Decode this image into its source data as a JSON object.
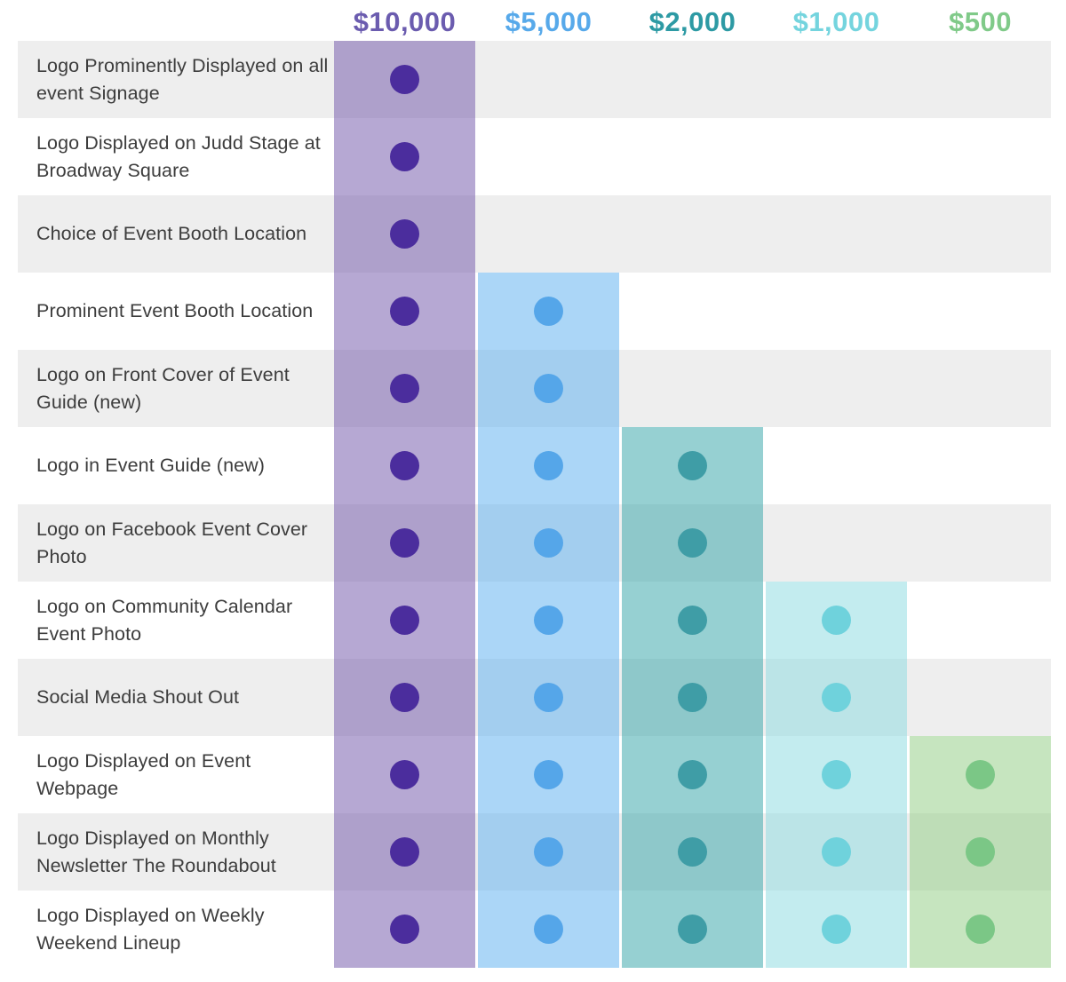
{
  "title": "Sponsorship benefits comparison matrix",
  "colors": {
    "page_bg": "#ffffff",
    "row_bg": "#ffffff",
    "row_alt_bg": "#eeeeee",
    "label_text": "#3d3d3d"
  },
  "tiers": [
    {
      "label": "$10,000",
      "header_color": "#6b5caf",
      "dot_color": "#4b2d9d",
      "band_color": "rgba(109,81,168,0.5)"
    },
    {
      "label": "$5,000",
      "header_color": "#57a9ea",
      "dot_color": "#55a6e9",
      "band_color": "rgba(87,173,239,0.5)"
    },
    {
      "label": "$2,000",
      "header_color": "#2d9aa4",
      "dot_color": "#3f9da6",
      "band_color": "rgba(45,161,165,0.5)"
    },
    {
      "label": "$1,000",
      "header_color": "#74d4de",
      "dot_color": "#6fd2dc",
      "band_color": "rgba(135,217,223,0.5)"
    },
    {
      "label": "$500",
      "header_color": "#80ca89",
      "dot_color": "#7bc786",
      "band_color": "rgba(141,203,127,0.5)"
    }
  ],
  "chart_data": {
    "type": "table",
    "columns": [
      "$10,000",
      "$5,000",
      "$2,000",
      "$1,000",
      "$500"
    ],
    "rows": [
      {
        "label": "Logo Prominently Displayed on all event Signage",
        "included": [
          true,
          false,
          false,
          false,
          false
        ]
      },
      {
        "label": "Logo Displayed on Judd Stage at Broadway Square",
        "included": [
          true,
          false,
          false,
          false,
          false
        ]
      },
      {
        "label": "Choice of Event Booth Location",
        "included": [
          true,
          false,
          false,
          false,
          false
        ]
      },
      {
        "label": "Prominent Event Booth Location",
        "included": [
          true,
          true,
          false,
          false,
          false
        ]
      },
      {
        "label": "Logo on Front Cover of Event Guide (new)",
        "included": [
          true,
          true,
          false,
          false,
          false
        ]
      },
      {
        "label": "Logo in Event Guide (new)",
        "included": [
          true,
          true,
          true,
          false,
          false
        ]
      },
      {
        "label": "Logo on Facebook Event Cover Photo",
        "included": [
          true,
          true,
          true,
          false,
          false
        ]
      },
      {
        "label": "Logo on Community Calendar Event Photo",
        "included": [
          true,
          true,
          true,
          true,
          false
        ]
      },
      {
        "label": "Social Media Shout Out",
        "included": [
          true,
          true,
          true,
          true,
          false
        ]
      },
      {
        "label": "Logo Displayed on Event Webpage",
        "included": [
          true,
          true,
          true,
          true,
          true
        ]
      },
      {
        "label": "Logo Displayed on Monthly Newsletter The Roundabout",
        "included": [
          true,
          true,
          true,
          true,
          true
        ]
      },
      {
        "label": "Logo Displayed on Weekly Weekend Lineup",
        "included": [
          true,
          true,
          true,
          true,
          true
        ]
      }
    ]
  }
}
